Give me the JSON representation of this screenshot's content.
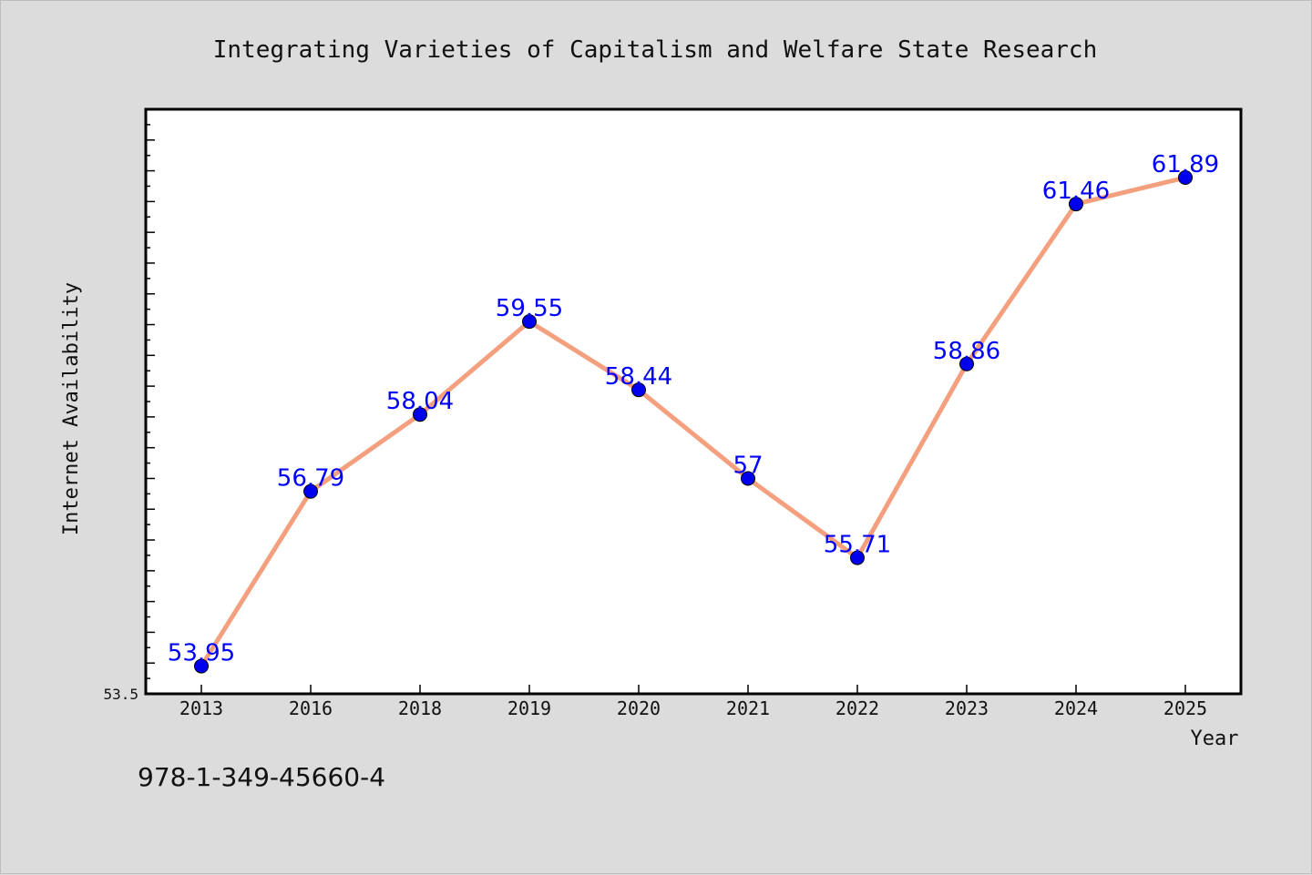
{
  "chart_data": {
    "type": "line",
    "title": "Integrating Varieties of Capitalism and Welfare State Research",
    "xlabel": "Year",
    "ylabel": "Internet Availability",
    "categories": [
      "2013",
      "2016",
      "2018",
      "2019",
      "2020",
      "2021",
      "2022",
      "2023",
      "2024",
      "2025"
    ],
    "series": [
      {
        "values": [
          53.95,
          56.79,
          58.04,
          59.55,
          58.44,
          57,
          55.71,
          58.86,
          61.46,
          61.89
        ]
      }
    ],
    "data_labels": [
      "53.95",
      "56.79",
      "58.04",
      "59.55",
      "58.44",
      "57",
      "55.71",
      "58.86",
      "61.46",
      "61.89"
    ],
    "ylim": [
      53.5,
      63.0
    ],
    "ytick_labels": [
      "53.5"
    ],
    "grid": false,
    "line_color": "#f4a07e",
    "marker_color": "#0000ee",
    "label_color": "#0000ff"
  },
  "footer": {
    "isbn": "978-1-349-45660-4"
  }
}
